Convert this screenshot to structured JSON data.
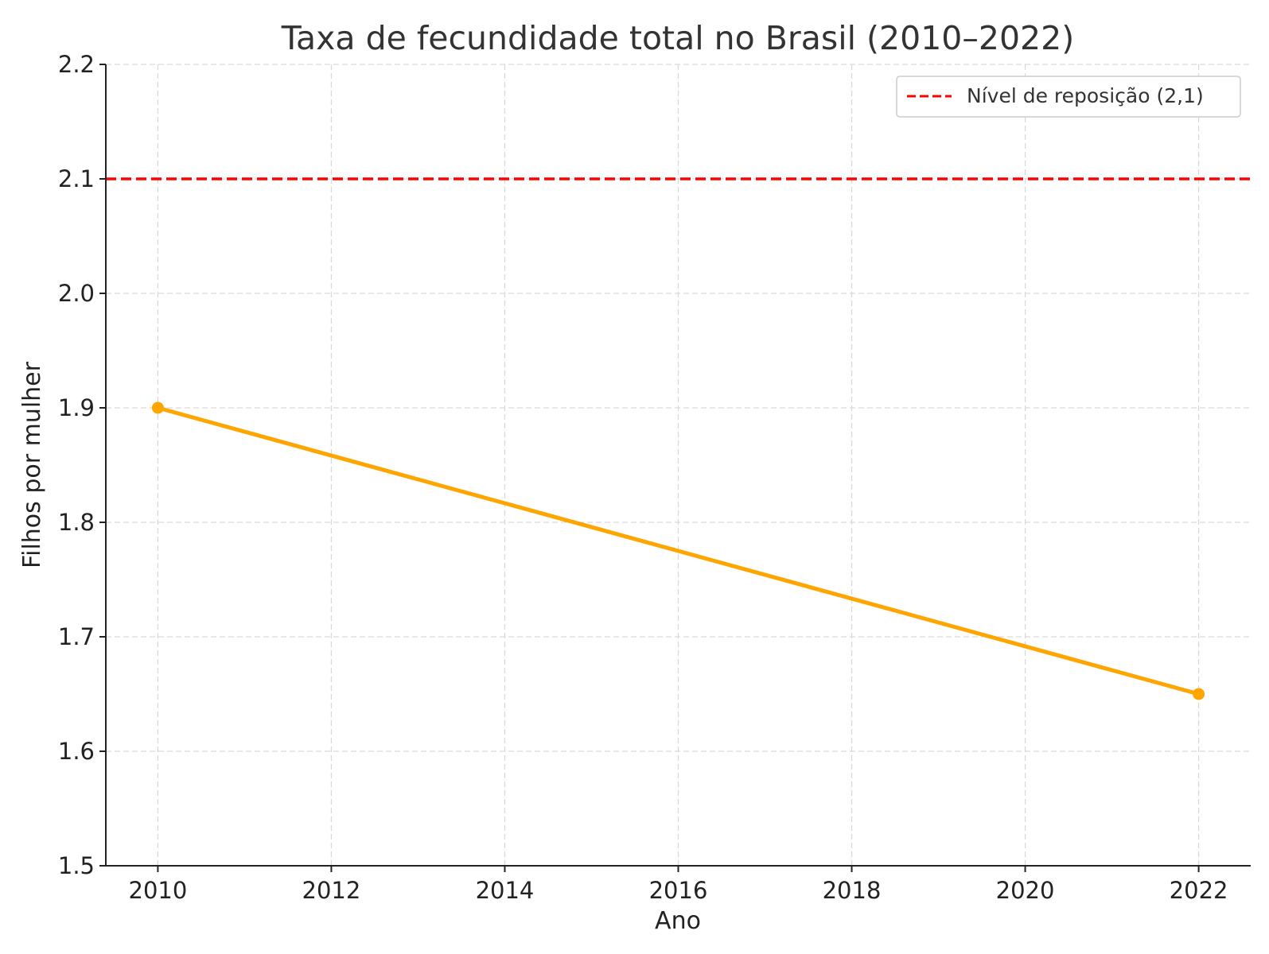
{
  "chart_data": {
    "type": "line",
    "title": "Taxa de fecundidade total no Brasil (2010–2022)",
    "xlabel": "Ano",
    "ylabel": "Filhos por mulher",
    "xlim": [
      2009.4,
      2022.6
    ],
    "ylim": [
      1.5,
      2.2
    ],
    "xticks": [
      "2010",
      "2012",
      "2014",
      "2016",
      "2018",
      "2020",
      "2022"
    ],
    "yticks": [
      "1.5",
      "1.6",
      "1.7",
      "1.8",
      "1.9",
      "2.0",
      "2.1",
      "2.2"
    ],
    "grid": true,
    "legend_placement": "top-right",
    "series": [
      {
        "x": [
          2010,
          2022
        ],
        "y": [
          1.9,
          1.65
        ],
        "color": "#ffa500",
        "marker": "circle"
      }
    ],
    "reference_lines": [
      {
        "name": "Nível de reposição (2,1)",
        "y": 2.1,
        "color": "#ff0000",
        "style": "dashed"
      }
    ]
  }
}
